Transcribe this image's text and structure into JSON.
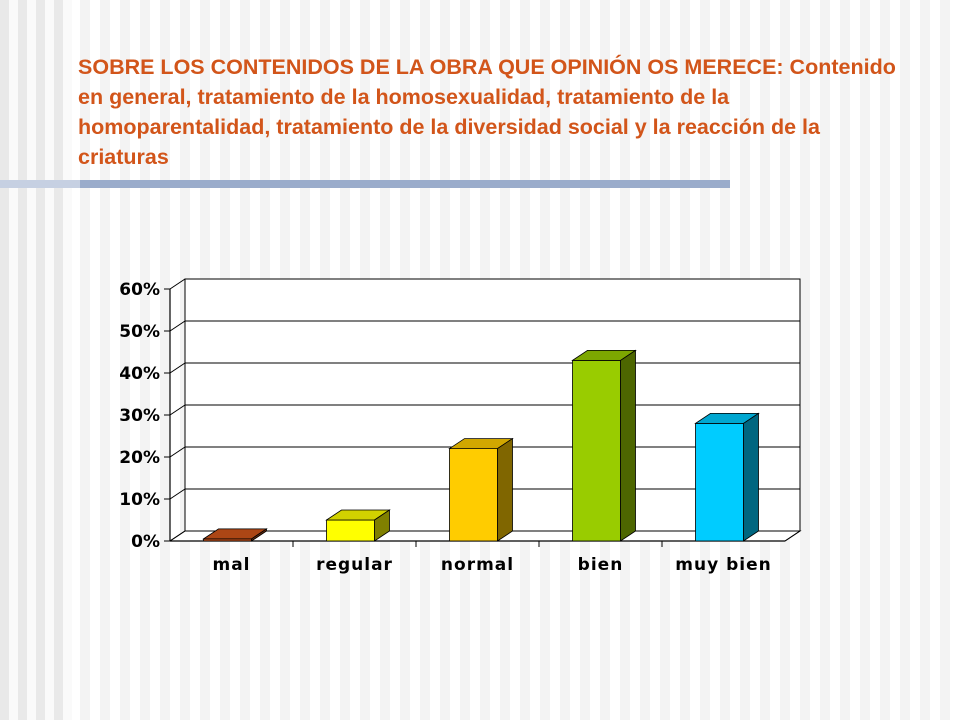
{
  "slide": {
    "title": "SOBRE LOS CONTENIDOS DE LA OBRA QUE OPINIÓN OS MERECE: Contenido en general, tratamiento de la homosexualidad, tratamiento de la homoparentalidad, tratamiento de la diversidad social y la reacción de la criaturas",
    "title_color": "#d2551a"
  },
  "chart_data": {
    "type": "bar",
    "categories": [
      "mal",
      "regular",
      "normal",
      "bien",
      "muy bien"
    ],
    "values": [
      0.5,
      5,
      22,
      43,
      28
    ],
    "colors": [
      "#d2551a",
      "#ffff00",
      "#ffcc00",
      "#99cc00",
      "#00ccff"
    ],
    "ylim": [
      0,
      60
    ],
    "yticks": [
      0,
      10,
      20,
      30,
      40,
      50,
      60
    ],
    "ytick_labels": [
      "0%",
      "10%",
      "20%",
      "30%",
      "40%",
      "50%",
      "60%"
    ],
    "grid": true,
    "style": "3d"
  }
}
